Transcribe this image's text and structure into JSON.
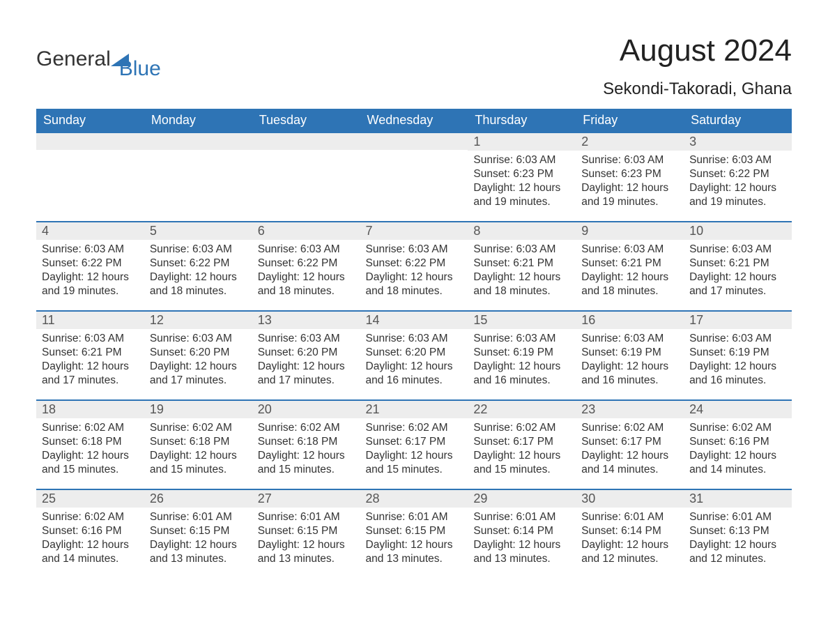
{
  "logo": {
    "part1": "General",
    "part2": "Blue"
  },
  "title": "August 2024",
  "location": "Sekondi-Takoradi, Ghana",
  "colors": {
    "header_bg": "#2e74b5",
    "header_text": "#ffffff",
    "daynum_bg": "#ededed",
    "daynum_border": "#2e74b5",
    "body_text": "#333333",
    "page_bg": "#ffffff"
  },
  "day_headers": [
    "Sunday",
    "Monday",
    "Tuesday",
    "Wednesday",
    "Thursday",
    "Friday",
    "Saturday"
  ],
  "weeks": [
    [
      null,
      null,
      null,
      null,
      {
        "n": "1",
        "sunrise": "6:03 AM",
        "sunset": "6:23 PM",
        "daylight": "12 hours and 19 minutes."
      },
      {
        "n": "2",
        "sunrise": "6:03 AM",
        "sunset": "6:23 PM",
        "daylight": "12 hours and 19 minutes."
      },
      {
        "n": "3",
        "sunrise": "6:03 AM",
        "sunset": "6:22 PM",
        "daylight": "12 hours and 19 minutes."
      }
    ],
    [
      {
        "n": "4",
        "sunrise": "6:03 AM",
        "sunset": "6:22 PM",
        "daylight": "12 hours and 19 minutes."
      },
      {
        "n": "5",
        "sunrise": "6:03 AM",
        "sunset": "6:22 PM",
        "daylight": "12 hours and 18 minutes."
      },
      {
        "n": "6",
        "sunrise": "6:03 AM",
        "sunset": "6:22 PM",
        "daylight": "12 hours and 18 minutes."
      },
      {
        "n": "7",
        "sunrise": "6:03 AM",
        "sunset": "6:22 PM",
        "daylight": "12 hours and 18 minutes."
      },
      {
        "n": "8",
        "sunrise": "6:03 AM",
        "sunset": "6:21 PM",
        "daylight": "12 hours and 18 minutes."
      },
      {
        "n": "9",
        "sunrise": "6:03 AM",
        "sunset": "6:21 PM",
        "daylight": "12 hours and 18 minutes."
      },
      {
        "n": "10",
        "sunrise": "6:03 AM",
        "sunset": "6:21 PM",
        "daylight": "12 hours and 17 minutes."
      }
    ],
    [
      {
        "n": "11",
        "sunrise": "6:03 AM",
        "sunset": "6:21 PM",
        "daylight": "12 hours and 17 minutes."
      },
      {
        "n": "12",
        "sunrise": "6:03 AM",
        "sunset": "6:20 PM",
        "daylight": "12 hours and 17 minutes."
      },
      {
        "n": "13",
        "sunrise": "6:03 AM",
        "sunset": "6:20 PM",
        "daylight": "12 hours and 17 minutes."
      },
      {
        "n": "14",
        "sunrise": "6:03 AM",
        "sunset": "6:20 PM",
        "daylight": "12 hours and 16 minutes."
      },
      {
        "n": "15",
        "sunrise": "6:03 AM",
        "sunset": "6:19 PM",
        "daylight": "12 hours and 16 minutes."
      },
      {
        "n": "16",
        "sunrise": "6:03 AM",
        "sunset": "6:19 PM",
        "daylight": "12 hours and 16 minutes."
      },
      {
        "n": "17",
        "sunrise": "6:03 AM",
        "sunset": "6:19 PM",
        "daylight": "12 hours and 16 minutes."
      }
    ],
    [
      {
        "n": "18",
        "sunrise": "6:02 AM",
        "sunset": "6:18 PM",
        "daylight": "12 hours and 15 minutes."
      },
      {
        "n": "19",
        "sunrise": "6:02 AM",
        "sunset": "6:18 PM",
        "daylight": "12 hours and 15 minutes."
      },
      {
        "n": "20",
        "sunrise": "6:02 AM",
        "sunset": "6:18 PM",
        "daylight": "12 hours and 15 minutes."
      },
      {
        "n": "21",
        "sunrise": "6:02 AM",
        "sunset": "6:17 PM",
        "daylight": "12 hours and 15 minutes."
      },
      {
        "n": "22",
        "sunrise": "6:02 AM",
        "sunset": "6:17 PM",
        "daylight": "12 hours and 15 minutes."
      },
      {
        "n": "23",
        "sunrise": "6:02 AM",
        "sunset": "6:17 PM",
        "daylight": "12 hours and 14 minutes."
      },
      {
        "n": "24",
        "sunrise": "6:02 AM",
        "sunset": "6:16 PM",
        "daylight": "12 hours and 14 minutes."
      }
    ],
    [
      {
        "n": "25",
        "sunrise": "6:02 AM",
        "sunset": "6:16 PM",
        "daylight": "12 hours and 14 minutes."
      },
      {
        "n": "26",
        "sunrise": "6:01 AM",
        "sunset": "6:15 PM",
        "daylight": "12 hours and 13 minutes."
      },
      {
        "n": "27",
        "sunrise": "6:01 AM",
        "sunset": "6:15 PM",
        "daylight": "12 hours and 13 minutes."
      },
      {
        "n": "28",
        "sunrise": "6:01 AM",
        "sunset": "6:15 PM",
        "daylight": "12 hours and 13 minutes."
      },
      {
        "n": "29",
        "sunrise": "6:01 AM",
        "sunset": "6:14 PM",
        "daylight": "12 hours and 13 minutes."
      },
      {
        "n": "30",
        "sunrise": "6:01 AM",
        "sunset": "6:14 PM",
        "daylight": "12 hours and 12 minutes."
      },
      {
        "n": "31",
        "sunrise": "6:01 AM",
        "sunset": "6:13 PM",
        "daylight": "12 hours and 12 minutes."
      }
    ]
  ],
  "labels": {
    "sunrise": "Sunrise: ",
    "sunset": "Sunset: ",
    "daylight": "Daylight: "
  }
}
